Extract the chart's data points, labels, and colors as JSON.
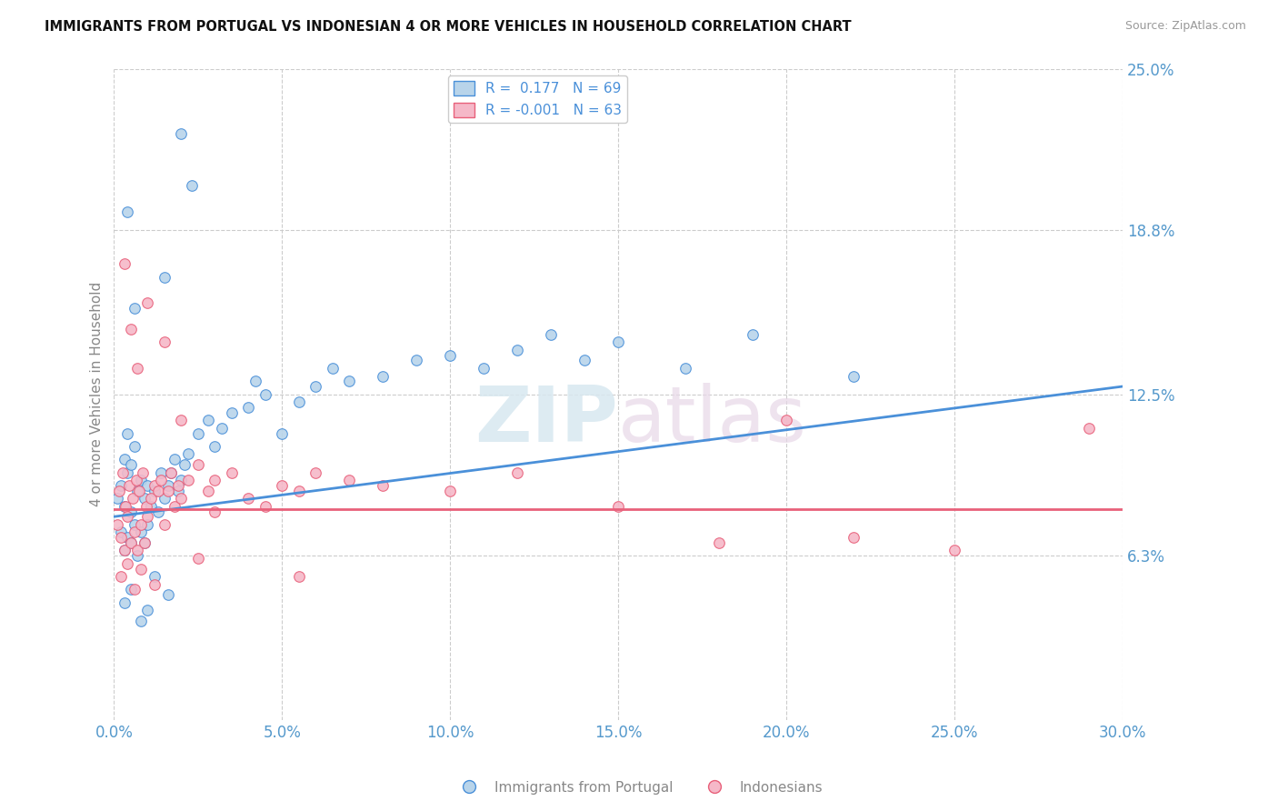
{
  "title": "IMMIGRANTS FROM PORTUGAL VS INDONESIAN 4 OR MORE VEHICLES IN HOUSEHOLD CORRELATION CHART",
  "source": "Source: ZipAtlas.com",
  "ylabel": "4 or more Vehicles in Household",
  "xlim": [
    0.0,
    30.0
  ],
  "ylim": [
    0.0,
    25.0
  ],
  "xticks": [
    0.0,
    5.0,
    10.0,
    15.0,
    20.0,
    25.0,
    30.0
  ],
  "yticks": [
    6.3,
    12.5,
    18.8,
    25.0
  ],
  "xtick_labels": [
    "0.0%",
    "5.0%",
    "10.0%",
    "15.0%",
    "20.0%",
    "25.0%",
    "30.0%"
  ],
  "ytick_labels": [
    "6.3%",
    "12.5%",
    "18.8%",
    "25.0%"
  ],
  "color_blue": "#b8d4ea",
  "color_pink": "#f5b8c8",
  "trend_blue": "#4a90d9",
  "trend_pink": "#e8607a",
  "R_blue": 0.177,
  "N_blue": 69,
  "R_pink": -0.001,
  "N_pink": 63,
  "legend_label_blue": "Immigrants from Portugal",
  "legend_label_pink": "Indonesians",
  "watermark_zip": "ZIP",
  "watermark_atlas": "atlas",
  "blue_trend_x0": 0.0,
  "blue_trend_y0": 7.8,
  "blue_trend_x1": 30.0,
  "blue_trend_y1": 12.8,
  "pink_trend_x0": 0.0,
  "pink_trend_y0": 8.1,
  "pink_trend_x1": 30.0,
  "pink_trend_y1": 8.1,
  "blue_x": [
    0.1,
    0.2,
    0.2,
    0.3,
    0.3,
    0.3,
    0.4,
    0.4,
    0.4,
    0.5,
    0.5,
    0.5,
    0.6,
    0.6,
    0.7,
    0.7,
    0.8,
    0.8,
    0.9,
    0.9,
    1.0,
    1.0,
    1.1,
    1.2,
    1.3,
    1.4,
    1.5,
    1.6,
    1.7,
    1.8,
    1.9,
    2.0,
    2.1,
    2.2,
    2.5,
    2.8,
    3.0,
    3.2,
    3.5,
    4.0,
    4.2,
    4.5,
    5.0,
    5.5,
    6.0,
    6.5,
    7.0,
    8.0,
    9.0,
    10.0,
    11.0,
    12.0,
    13.0,
    14.0,
    15.0,
    17.0,
    19.0,
    22.0,
    2.3,
    1.5,
    2.0,
    0.3,
    0.5,
    1.0,
    0.8,
    1.2,
    1.6,
    0.6,
    0.4
  ],
  "blue_y": [
    8.5,
    7.2,
    9.0,
    6.5,
    8.2,
    10.0,
    7.0,
    9.5,
    11.0,
    6.8,
    8.0,
    9.8,
    7.5,
    10.5,
    6.3,
    8.8,
    7.2,
    9.2,
    6.8,
    8.5,
    7.5,
    9.0,
    8.2,
    8.8,
    8.0,
    9.5,
    8.5,
    9.0,
    9.5,
    10.0,
    8.8,
    9.2,
    9.8,
    10.2,
    11.0,
    11.5,
    10.5,
    11.2,
    11.8,
    12.0,
    13.0,
    12.5,
    11.0,
    12.2,
    12.8,
    13.5,
    13.0,
    13.2,
    13.8,
    14.0,
    13.5,
    14.2,
    14.8,
    13.8,
    14.5,
    13.5,
    14.8,
    13.2,
    20.5,
    17.0,
    22.5,
    4.5,
    5.0,
    4.2,
    3.8,
    5.5,
    4.8,
    15.8,
    19.5
  ],
  "pink_x": [
    0.1,
    0.15,
    0.2,
    0.25,
    0.3,
    0.35,
    0.4,
    0.45,
    0.5,
    0.55,
    0.6,
    0.65,
    0.7,
    0.75,
    0.8,
    0.85,
    0.9,
    0.95,
    1.0,
    1.1,
    1.2,
    1.3,
    1.4,
    1.5,
    1.6,
    1.7,
    1.8,
    1.9,
    2.0,
    2.2,
    2.5,
    2.8,
    3.0,
    3.5,
    4.0,
    4.5,
    5.0,
    5.5,
    6.0,
    7.0,
    8.0,
    10.0,
    12.0,
    15.0,
    18.0,
    20.0,
    22.0,
    25.0,
    29.0,
    0.3,
    0.5,
    0.7,
    1.0,
    1.5,
    2.0,
    3.0,
    0.2,
    0.4,
    0.6,
    0.8,
    1.2,
    2.5,
    5.5
  ],
  "pink_y": [
    7.5,
    8.8,
    7.0,
    9.5,
    6.5,
    8.2,
    7.8,
    9.0,
    6.8,
    8.5,
    7.2,
    9.2,
    6.5,
    8.8,
    7.5,
    9.5,
    6.8,
    8.2,
    7.8,
    8.5,
    9.0,
    8.8,
    9.2,
    7.5,
    8.8,
    9.5,
    8.2,
    9.0,
    8.5,
    9.2,
    9.8,
    8.8,
    9.2,
    9.5,
    8.5,
    8.2,
    9.0,
    8.8,
    9.5,
    9.2,
    9.0,
    8.8,
    9.5,
    8.2,
    6.8,
    11.5,
    7.0,
    6.5,
    11.2,
    17.5,
    15.0,
    13.5,
    16.0,
    14.5,
    11.5,
    8.0,
    5.5,
    6.0,
    5.0,
    5.8,
    5.2,
    6.2,
    5.5
  ]
}
